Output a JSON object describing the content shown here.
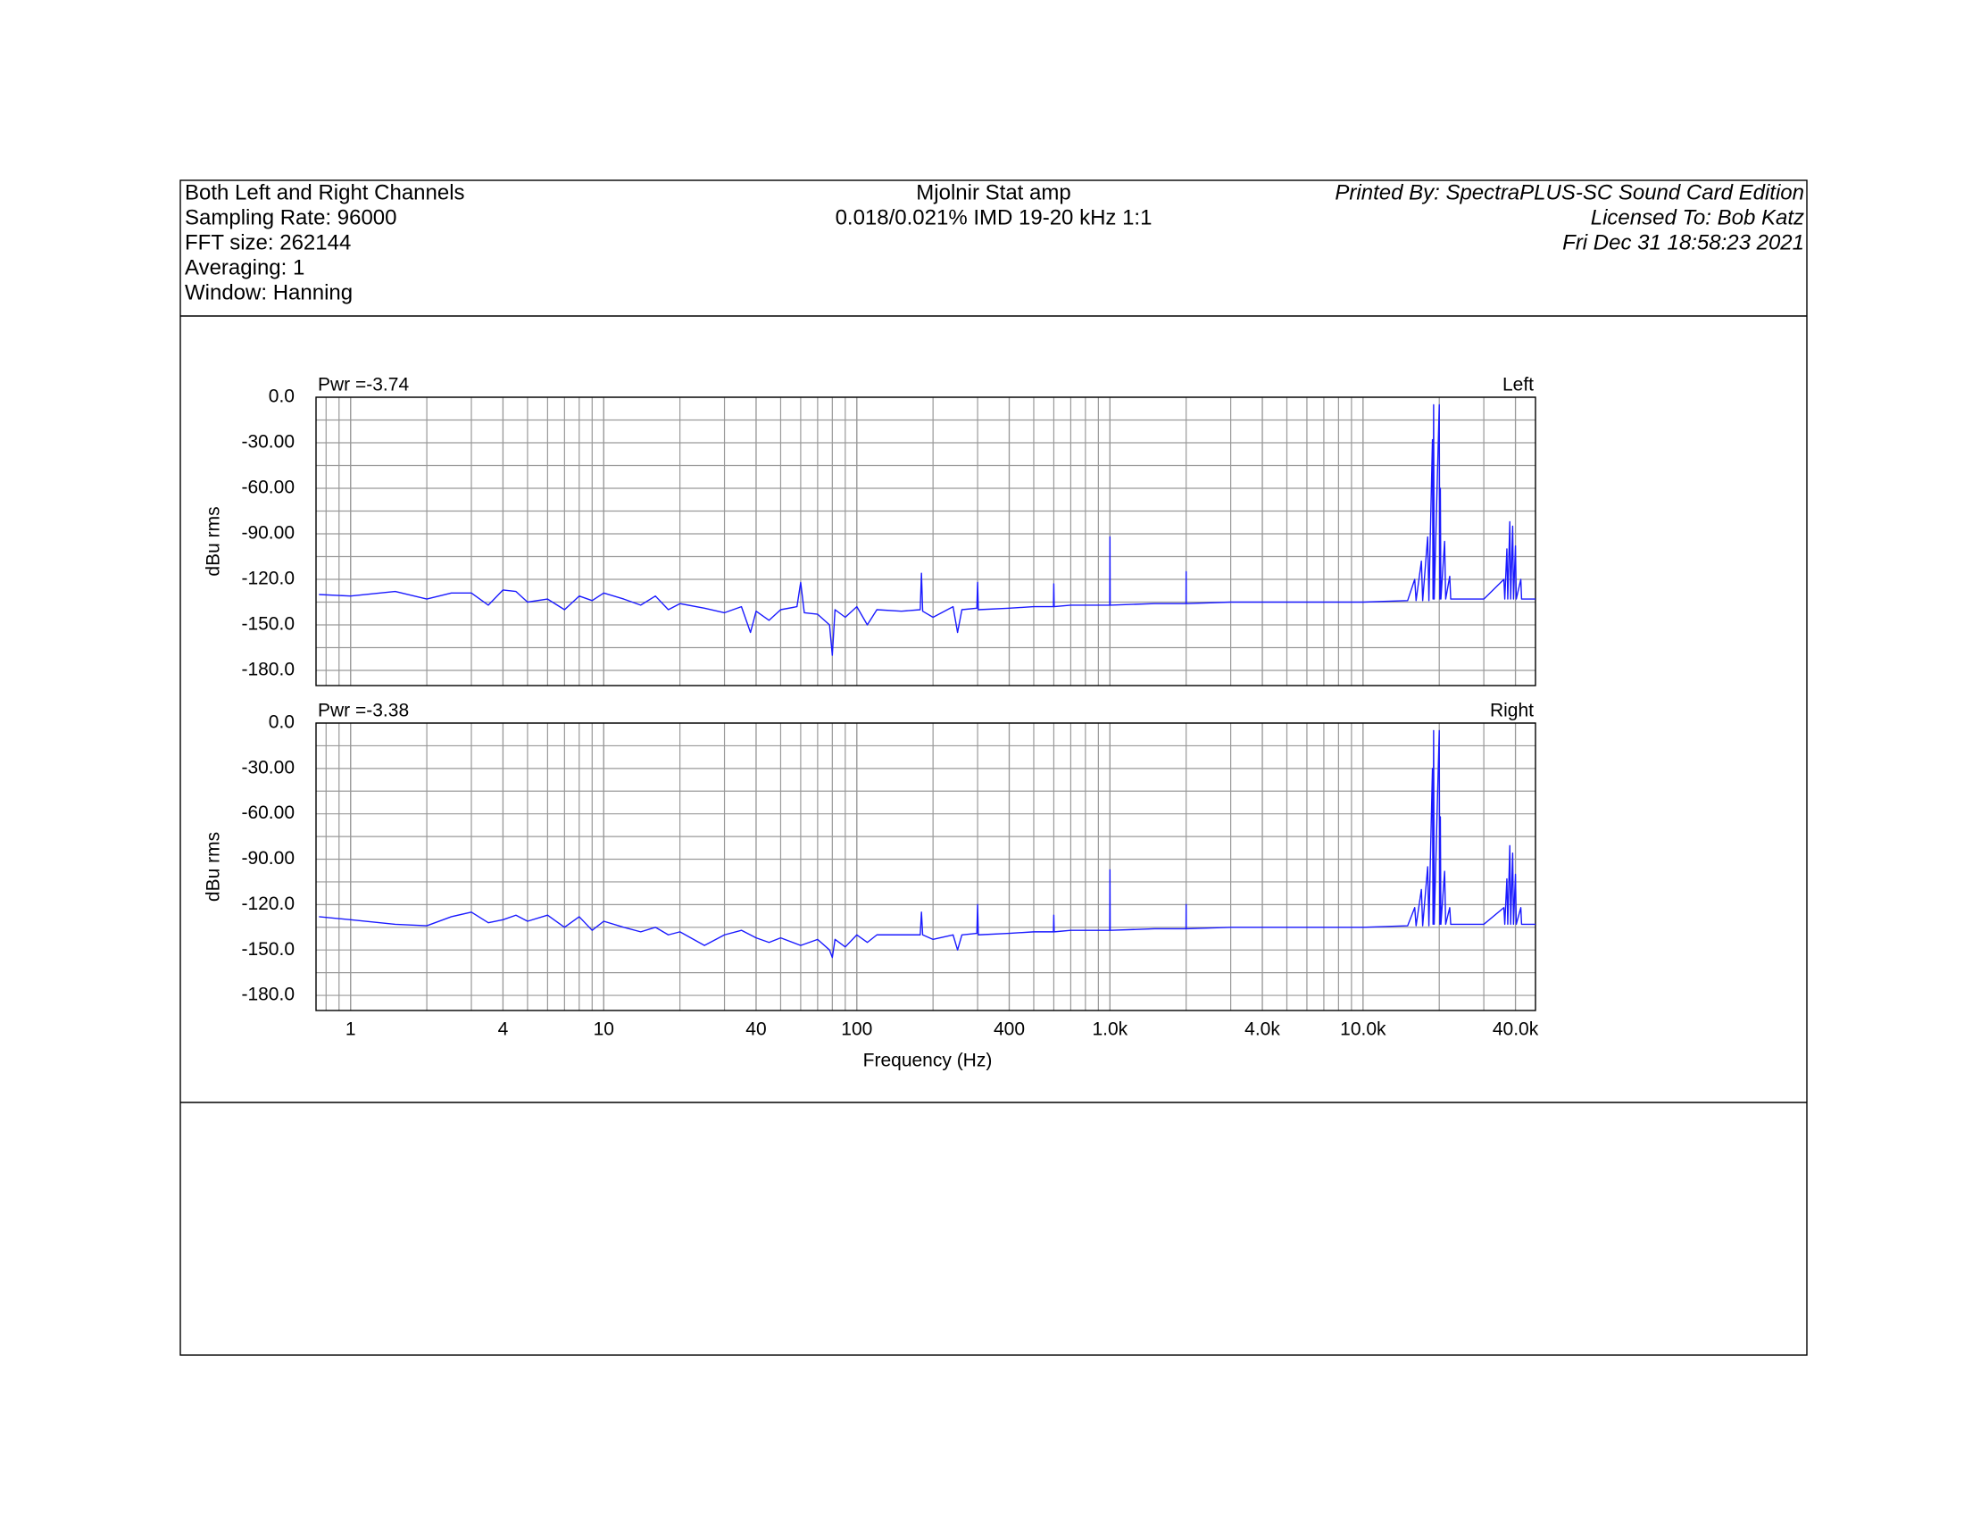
{
  "header": {
    "left": [
      "Both Left and Right Channels",
      "Sampling Rate: 96000",
      "FFT size: 262144",
      "Averaging: 1",
      "Window: Hanning"
    ],
    "center": [
      "Mjolnir Stat amp",
      "0.018/0.021% IMD 19-20 kHz 1:1"
    ],
    "right": [
      "Printed By: SpectraPLUS-SC Sound Card Edition",
      "Licensed To: Bob Katz",
      "Fri Dec 31 18:58:23 2021"
    ]
  },
  "chart_data": [
    {
      "type": "line",
      "pwr_label": "Pwr =-3.74",
      "channel_label": "Left",
      "ylabel": "dBu rms",
      "x_scale": "log",
      "grid": true,
      "xlim": [
        0.73,
        48000
      ],
      "xticks": [
        1,
        4,
        10,
        40,
        100,
        400,
        1000,
        4000,
        10000,
        40000
      ],
      "ylim": [
        -190,
        0
      ],
      "yticks": [
        {
          "value": 0,
          "label": "0.0"
        },
        {
          "value": -30,
          "label": "-30.00"
        },
        {
          "value": -60,
          "label": "-60.00"
        },
        {
          "value": -90,
          "label": "-90.00"
        },
        {
          "value": -120,
          "label": "-120.0"
        },
        {
          "value": -150,
          "label": "-150.0"
        },
        {
          "value": -180,
          "label": "-180.0"
        }
      ],
      "series": [
        {
          "color": "#1a1aff",
          "x": [
            0.75,
            1,
            1.5,
            2,
            2.5,
            3,
            3.5,
            4,
            4.5,
            5,
            6,
            7,
            8,
            9,
            10,
            12,
            14,
            16,
            18,
            20,
            25,
            30,
            35,
            38,
            40,
            45,
            50,
            58,
            60,
            62,
            70,
            78,
            80,
            82,
            90,
            100,
            110,
            120,
            150,
            178,
            180,
            182,
            200,
            240,
            250,
            260,
            298,
            300,
            302,
            400,
            500,
            598,
            600,
            602,
            700,
            800,
            998,
            1000,
            1002,
            1500,
            1998,
            2000,
            2002,
            3000,
            5000,
            10000,
            15000,
            16000,
            16200,
            17000,
            17200,
            18000,
            18200,
            18800,
            18900,
            19000,
            19100,
            20000,
            20100,
            20200,
            20300,
            21000,
            21200,
            22000,
            22200,
            30000,
            36000,
            36300,
            37000,
            37300,
            38000,
            38300,
            39000,
            39300,
            40000,
            40300,
            42000,
            42300,
            48000
          ],
          "values": [
            -130,
            -131,
            -128,
            -133,
            -129,
            -129,
            -137,
            -127,
            -128,
            -135,
            -133,
            -140,
            -131,
            -134,
            -129,
            -133,
            -137,
            -131,
            -140,
            -136,
            -139,
            -142,
            -138,
            -155,
            -141,
            -147,
            -140,
            -138,
            -122,
            -142,
            -143,
            -150,
            -170,
            -140,
            -145,
            -138,
            -150,
            -140,
            -141,
            -140,
            -116,
            -141,
            -145,
            -138,
            -155,
            -140,
            -139,
            -122,
            -140,
            -139,
            -138,
            -138,
            -123,
            -138,
            -137,
            -137,
            -137,
            -92,
            -137,
            -136,
            -136,
            -115,
            -136,
            -135,
            -135,
            -135,
            -134,
            -120,
            -134,
            -108,
            -134,
            -92,
            -134,
            -28,
            -133,
            -5,
            -133,
            -5,
            -133,
            -60,
            -133,
            -95,
            -133,
            -118,
            -133,
            -133,
            -120,
            -133,
            -100,
            -133,
            -82,
            -133,
            -85,
            -133,
            -98,
            -133,
            -120,
            -133,
            -133
          ]
        }
      ]
    },
    {
      "type": "line",
      "pwr_label": "Pwr =-3.38",
      "channel_label": "Right",
      "ylabel": "dBu rms",
      "xlabel": "Frequency (Hz)",
      "x_scale": "log",
      "grid": true,
      "xlim": [
        0.73,
        48000
      ],
      "xticks": [
        1,
        4,
        10,
        40,
        100,
        400,
        {
          "value": 1000,
          "label": "1.0k"
        },
        {
          "value": 4000,
          "label": "4.0k"
        },
        {
          "value": 10000,
          "label": "10.0k"
        },
        {
          "value": 40000,
          "label": "40.0k"
        }
      ],
      "ylim": [
        -190,
        0
      ],
      "yticks": [
        {
          "value": 0,
          "label": "0.0"
        },
        {
          "value": -30,
          "label": "-30.00"
        },
        {
          "value": -60,
          "label": "-60.00"
        },
        {
          "value": -90,
          "label": "-90.00"
        },
        {
          "value": -120,
          "label": "-120.0"
        },
        {
          "value": -150,
          "label": "-150.0"
        },
        {
          "value": -180,
          "label": "-180.0"
        }
      ],
      "series": [
        {
          "color": "#1a1aff",
          "x": [
            0.75,
            1,
            1.5,
            2,
            2.5,
            3,
            3.5,
            4,
            4.5,
            5,
            6,
            7,
            8,
            9,
            10,
            12,
            14,
            16,
            18,
            20,
            25,
            30,
            35,
            40,
            45,
            50,
            60,
            70,
            78,
            80,
            82,
            90,
            100,
            110,
            120,
            150,
            178,
            180,
            182,
            200,
            240,
            250,
            260,
            298,
            300,
            302,
            400,
            500,
            598,
            600,
            602,
            700,
            800,
            998,
            1000,
            1002,
            1500,
            1998,
            2000,
            2002,
            3000,
            5000,
            10000,
            15000,
            16000,
            16200,
            17000,
            17200,
            18000,
            18200,
            18800,
            18900,
            19000,
            19100,
            20000,
            20100,
            20200,
            20300,
            21000,
            21200,
            22000,
            22200,
            30000,
            36000,
            36300,
            37000,
            37300,
            38000,
            38300,
            39000,
            39300,
            40000,
            40300,
            42000,
            42300,
            48000
          ],
          "values": [
            -128,
            -130,
            -133,
            -134,
            -128,
            -125,
            -132,
            -130,
            -127,
            -131,
            -127,
            -135,
            -128,
            -137,
            -131,
            -135,
            -138,
            -135,
            -140,
            -138,
            -147,
            -140,
            -137,
            -142,
            -145,
            -142,
            -147,
            -143,
            -150,
            -155,
            -143,
            -148,
            -140,
            -145,
            -140,
            -140,
            -140,
            -125,
            -140,
            -143,
            -140,
            -150,
            -140,
            -139,
            -120,
            -140,
            -139,
            -138,
            -138,
            -127,
            -138,
            -137,
            -137,
            -137,
            -97,
            -137,
            -136,
            -136,
            -120,
            -136,
            -135,
            -135,
            -135,
            -134,
            -122,
            -134,
            -110,
            -134,
            -95,
            -134,
            -30,
            -133,
            -5,
            -133,
            -5,
            -133,
            -62,
            -133,
            -98,
            -133,
            -122,
            -133,
            -133,
            -122,
            -133,
            -103,
            -133,
            -81,
            -133,
            -86,
            -133,
            -100,
            -133,
            -122,
            -133,
            -133
          ]
        }
      ]
    }
  ]
}
